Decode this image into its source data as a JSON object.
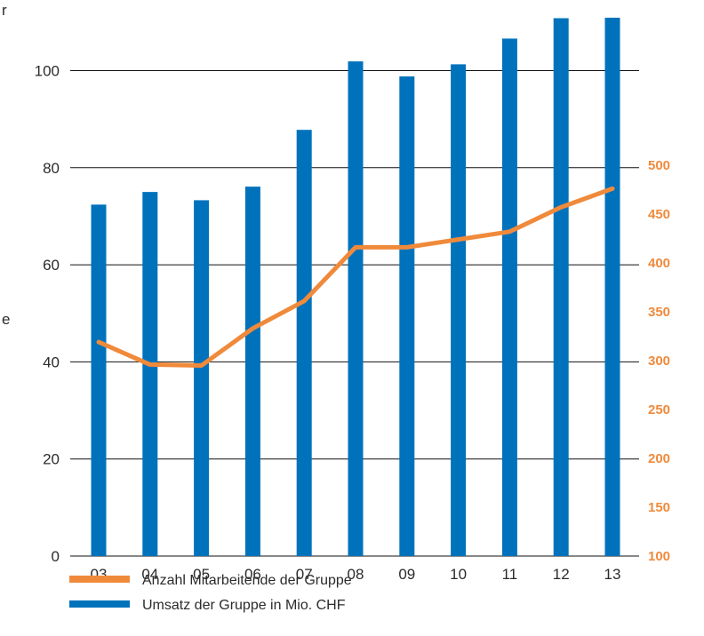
{
  "chart_data": {
    "type": "bar",
    "categories": [
      "03",
      "04",
      "05",
      "06",
      "07",
      "08",
      "09",
      "10",
      "11",
      "12",
      "13"
    ],
    "series": [
      {
        "name": "Umsatz der Gruppe in Mio. CHF",
        "type": "bar",
        "axis": "left",
        "color": "#0072bc",
        "values": [
          72.4,
          75.0,
          73.3,
          76.1,
          87.8,
          101.9,
          98.8,
          101.3,
          106.6,
          110.8,
          110.9
        ]
      },
      {
        "name": "Anzahl Mitarbeitende der Gruppe",
        "type": "line",
        "axis": "right",
        "color": "#f08a3b",
        "values": [
          319,
          296,
          295,
          333,
          361,
          416,
          416,
          424,
          432,
          457,
          476
        ]
      }
    ],
    "y_left": {
      "ticks": [
        "0",
        "20",
        "40",
        "60",
        "80",
        "100"
      ],
      "range": [
        0,
        120
      ]
    },
    "y_right": {
      "ticks": [
        "100",
        "150",
        "200",
        "250",
        "300",
        "350",
        "400",
        "450",
        "500"
      ],
      "range": [
        100,
        530
      ]
    },
    "gridlines": true,
    "legend": {
      "placement": "bottom-left",
      "items": [
        {
          "label": "Anzahl Mitarbeitende der Gruppe",
          "color": "#f08a3b"
        },
        {
          "label": "Umsatz der Gruppe in Mio. CHF",
          "color": "#0072bc"
        }
      ]
    },
    "cropped_text": [
      "r",
      "e"
    ]
  }
}
